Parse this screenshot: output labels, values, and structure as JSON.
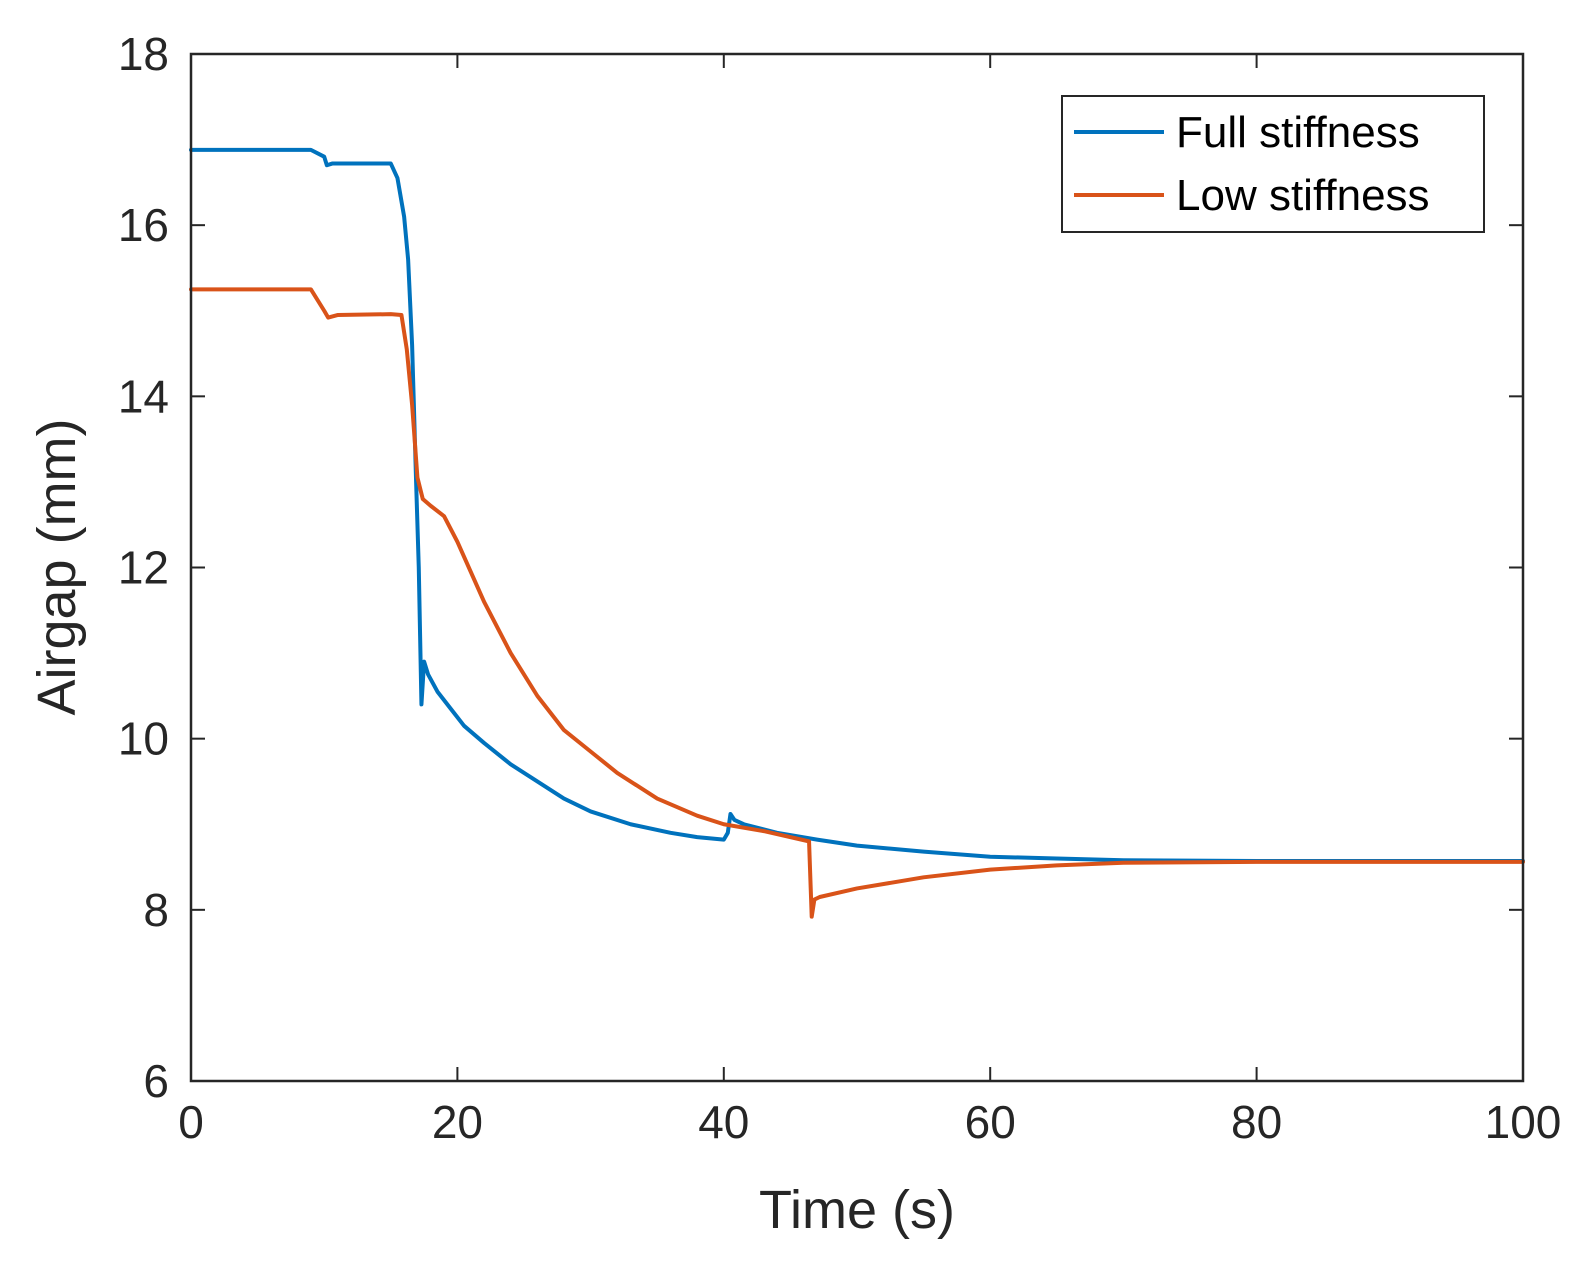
{
  "chart_data": {
    "type": "line",
    "title": "",
    "xlabel": "Time (s)",
    "ylabel": "Airgap (mm)",
    "xlim": [
      0,
      100
    ],
    "ylim": [
      6,
      18
    ],
    "xticks": [
      0,
      20,
      40,
      60,
      80,
      100
    ],
    "yticks": [
      6,
      8,
      10,
      12,
      14,
      16,
      18
    ],
    "xtick_labels": [
      "0",
      "20",
      "40",
      "60",
      "80",
      "100"
    ],
    "ytick_labels": [
      "6",
      "8",
      "10",
      "12",
      "14",
      "16",
      "18"
    ],
    "grid": false,
    "legend_position": "top-right",
    "series": [
      {
        "name": "Full stiffness",
        "color": "#0072BD",
        "x": [
          0,
          9,
          10,
          10.2,
          10.6,
          15,
          15.5,
          16,
          16.3,
          16.6,
          16.9,
          17.1,
          17.3,
          17.5,
          17.8,
          18.5,
          19.5,
          20.5,
          22,
          24,
          26,
          28,
          30,
          33,
          36,
          38,
          40,
          40.3,
          40.5,
          40.8,
          41.5,
          44,
          47,
          50,
          55,
          60,
          65,
          70,
          80,
          90,
          100
        ],
        "y": [
          16.88,
          16.88,
          16.8,
          16.7,
          16.72,
          16.72,
          16.55,
          16.1,
          15.6,
          14.6,
          13.0,
          12.0,
          10.4,
          10.9,
          10.75,
          10.55,
          10.35,
          10.15,
          9.95,
          9.7,
          9.5,
          9.3,
          9.15,
          9.0,
          8.9,
          8.85,
          8.82,
          8.9,
          9.12,
          9.05,
          9.0,
          8.9,
          8.82,
          8.75,
          8.68,
          8.62,
          8.6,
          8.58,
          8.57,
          8.57,
          8.57
        ]
      },
      {
        "name": "Low stiffness",
        "color": "#D95319",
        "x": [
          0,
          9,
          10,
          10.3,
          11,
          15,
          15.8,
          16.2,
          16.6,
          17,
          17.4,
          18,
          19,
          20,
          22,
          24,
          26,
          28,
          30,
          32,
          35,
          38,
          40,
          43,
          46.4,
          46.6,
          46.8,
          47.2,
          50,
          55,
          60,
          65,
          70,
          80,
          90,
          100
        ],
        "y": [
          15.25,
          15.25,
          15.0,
          14.92,
          14.95,
          14.96,
          14.95,
          14.55,
          13.9,
          13.05,
          12.8,
          12.72,
          12.6,
          12.3,
          11.6,
          11.0,
          10.5,
          10.1,
          9.85,
          9.6,
          9.3,
          9.1,
          9.0,
          8.92,
          8.8,
          7.92,
          8.12,
          8.15,
          8.25,
          8.38,
          8.47,
          8.52,
          8.55,
          8.56,
          8.56,
          8.56
        ]
      }
    ]
  }
}
